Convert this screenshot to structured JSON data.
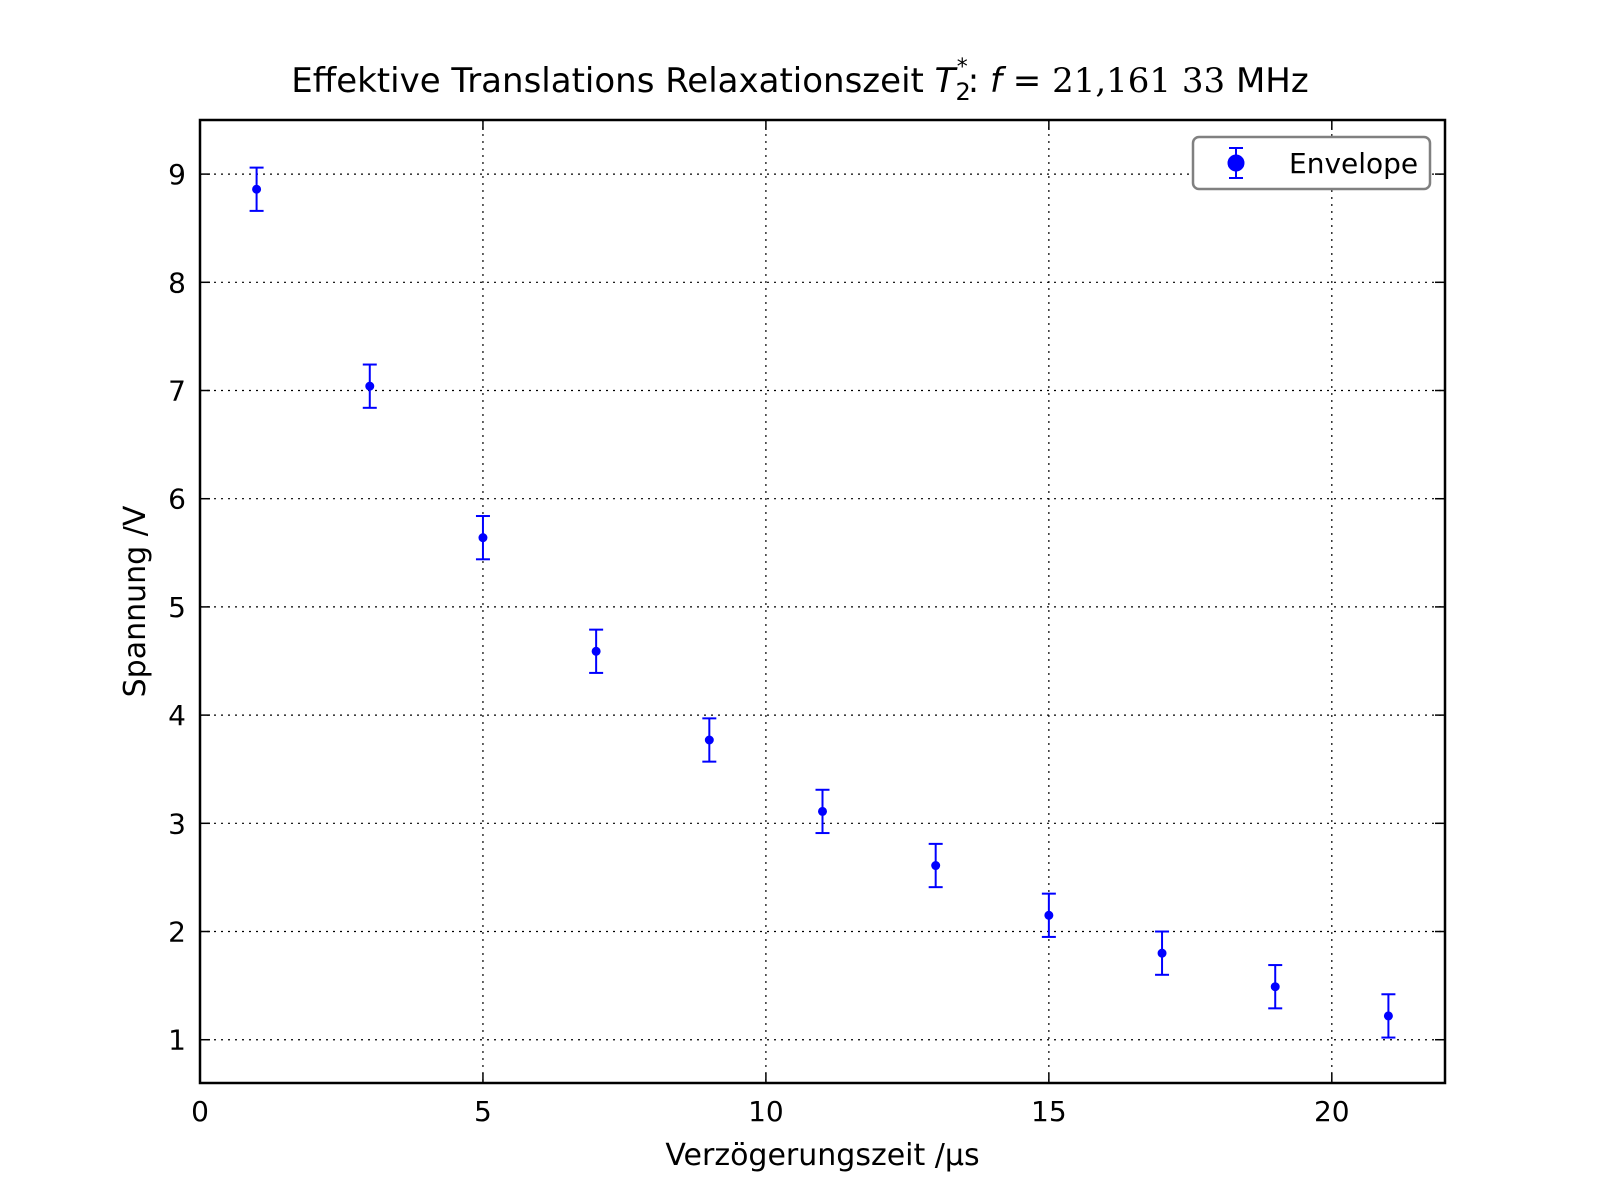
{
  "chart_data": {
    "type": "scatter",
    "title": {
      "prefix": "Effektive Translations Relaxationszeit ",
      "symbol": "T",
      "symbol_sub": "2",
      "symbol_sup": "*",
      "middle": ": ",
      "freq_symbol": "f",
      "equals": " = ",
      "value": "21,161 33",
      "unit": " MHz"
    },
    "xlabel": "Verzögerungszeit /µs",
    "ylabel": "Spannung /V",
    "xlim": [
      0,
      22
    ],
    "ylim": [
      0.6,
      9.5
    ],
    "x_ticks": [
      0,
      5,
      10,
      15,
      20
    ],
    "y_ticks": [
      1,
      2,
      3,
      4,
      5,
      6,
      7,
      8,
      9
    ],
    "grid": true,
    "legend_position": "top-right",
    "series": [
      {
        "name": "Envelope",
        "color": "#0000ff",
        "x": [
          1,
          3,
          5,
          7,
          9,
          11,
          13,
          15,
          17,
          19,
          21
        ],
        "y": [
          8.86,
          7.04,
          5.64,
          4.59,
          3.77,
          3.11,
          2.61,
          2.15,
          1.8,
          1.49,
          1.22
        ],
        "yerr": [
          0.2,
          0.2,
          0.2,
          0.2,
          0.2,
          0.2,
          0.2,
          0.2,
          0.2,
          0.2,
          0.2
        ]
      }
    ]
  }
}
